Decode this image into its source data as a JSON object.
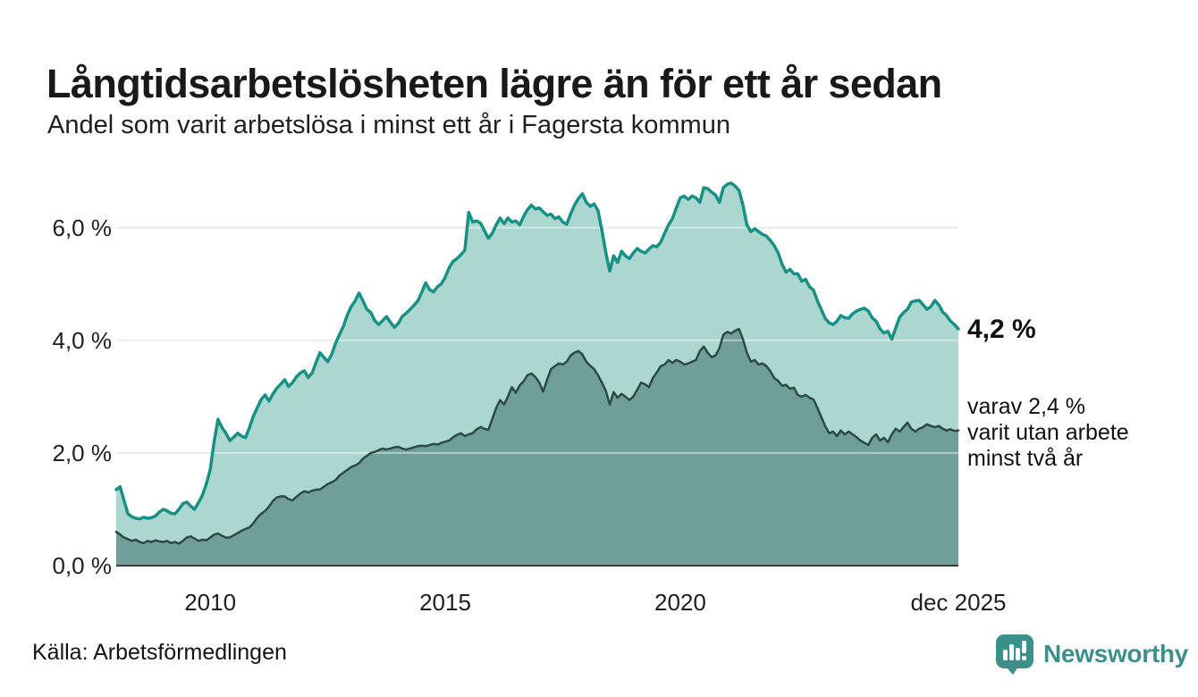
{
  "header": {
    "title": "Långtidsarbetslösheten lägre än för ett år sedan",
    "subtitle": "Andel som varit arbetslösa i minst ett år i Fagersta kommun"
  },
  "chart_data": {
    "type": "area",
    "title": "Långtidsarbetslösheten lägre än för ett år sedan",
    "subtitle": "Andel som varit arbetslösa i minst ett år i Fagersta kommun",
    "grid": true,
    "legend_position": "none",
    "x_axis": {
      "range": [
        2008.0,
        2025.917
      ],
      "ticks": [
        {
          "label": "2010",
          "value": 2010
        },
        {
          "label": "2015",
          "value": 2015
        },
        {
          "label": "2020",
          "value": 2020
        },
        {
          "label": "dec 2025",
          "value": 2025.917
        }
      ]
    },
    "y_axis": {
      "range": [
        0,
        6.9
      ],
      "unit": "%",
      "gridlines": [
        2,
        4,
        6
      ],
      "ticks": [
        {
          "label": "0,0 %",
          "value": 0
        },
        {
          "label": "2,0 %",
          "value": 2
        },
        {
          "label": "4,0 %",
          "value": 4
        },
        {
          "label": "6,0 %",
          "value": 6
        }
      ]
    },
    "series": [
      {
        "name": "Arbetslösa minst ett år",
        "line_color": "#189184",
        "fill_color": "#acd7d0",
        "end_value_label": "4,2 %",
        "start": 2008.0,
        "step_months": 1,
        "values": [
          1.35,
          1.4,
          1.15,
          0.92,
          0.87,
          0.84,
          0.83,
          0.86,
          0.84,
          0.85,
          0.88,
          0.95,
          1.0,
          0.97,
          0.93,
          0.92,
          1.0,
          1.1,
          1.13,
          1.06,
          1.0,
          1.12,
          1.25,
          1.45,
          1.71,
          2.2,
          2.6,
          2.45,
          2.35,
          2.22,
          2.28,
          2.35,
          2.3,
          2.27,
          2.45,
          2.65,
          2.8,
          2.95,
          3.03,
          2.92,
          3.05,
          3.15,
          3.22,
          3.3,
          3.18,
          3.25,
          3.35,
          3.42,
          3.46,
          3.34,
          3.42,
          3.6,
          3.78,
          3.7,
          3.62,
          3.75,
          3.95,
          4.1,
          4.25,
          4.45,
          4.6,
          4.7,
          4.84,
          4.7,
          4.55,
          4.49,
          4.35,
          4.28,
          4.35,
          4.42,
          4.32,
          4.23,
          4.3,
          4.42,
          4.48,
          4.55,
          4.62,
          4.7,
          4.85,
          5.02,
          4.9,
          4.86,
          4.95,
          5.0,
          5.12,
          5.29,
          5.4,
          5.45,
          5.52,
          5.6,
          6.27,
          6.1,
          6.12,
          6.08,
          5.95,
          5.81,
          5.9,
          6.05,
          6.17,
          6.07,
          6.17,
          6.1,
          6.12,
          6.05,
          6.2,
          6.32,
          6.4,
          6.33,
          6.35,
          6.28,
          6.22,
          6.24,
          6.16,
          6.19,
          6.1,
          6.06,
          6.24,
          6.4,
          6.52,
          6.6,
          6.45,
          6.38,
          6.42,
          6.3,
          5.95,
          5.55,
          5.23,
          5.5,
          5.38,
          5.58,
          5.5,
          5.45,
          5.55,
          5.63,
          5.58,
          5.55,
          5.62,
          5.68,
          5.66,
          5.74,
          5.9,
          6.05,
          6.16,
          6.35,
          6.53,
          6.56,
          6.5,
          6.56,
          6.53,
          6.45,
          6.71,
          6.69,
          6.63,
          6.58,
          6.45,
          6.71,
          6.77,
          6.79,
          6.74,
          6.66,
          6.4,
          6.05,
          5.93,
          5.98,
          5.93,
          5.88,
          5.85,
          5.77,
          5.68,
          5.55,
          5.35,
          5.21,
          5.26,
          5.18,
          5.18,
          5.05,
          5.08,
          4.95,
          4.89,
          4.7,
          4.55,
          4.39,
          4.31,
          4.28,
          4.34,
          4.44,
          4.4,
          4.39,
          4.47,
          4.52,
          4.55,
          4.57,
          4.52,
          4.4,
          4.34,
          4.2,
          4.13,
          4.16,
          4.02,
          4.22,
          4.41,
          4.49,
          4.55,
          4.68,
          4.7,
          4.71,
          4.63,
          4.55,
          4.6,
          4.71,
          4.63,
          4.5,
          4.44,
          4.34,
          4.28,
          4.2
        ]
      },
      {
        "name": "Varav utan arbete minst två år",
        "line_color": "#2c4944",
        "fill_color": "#6f9f99",
        "end_value_label": "2,4 %",
        "start": 2008.0,
        "step_months": 1,
        "values": [
          0.6,
          0.55,
          0.5,
          0.47,
          0.44,
          0.46,
          0.42,
          0.4,
          0.44,
          0.42,
          0.45,
          0.43,
          0.42,
          0.44,
          0.4,
          0.42,
          0.39,
          0.44,
          0.5,
          0.52,
          0.48,
          0.44,
          0.46,
          0.45,
          0.5,
          0.55,
          0.57,
          0.53,
          0.5,
          0.5,
          0.54,
          0.58,
          0.62,
          0.65,
          0.68,
          0.75,
          0.85,
          0.92,
          0.97,
          1.05,
          1.15,
          1.21,
          1.23,
          1.23,
          1.18,
          1.16,
          1.22,
          1.28,
          1.32,
          1.3,
          1.33,
          1.35,
          1.35,
          1.4,
          1.45,
          1.48,
          1.52,
          1.6,
          1.65,
          1.7,
          1.75,
          1.78,
          1.82,
          1.9,
          1.95,
          2.0,
          2.02,
          2.05,
          2.08,
          2.06,
          2.08,
          2.1,
          2.11,
          2.08,
          2.06,
          2.08,
          2.1,
          2.12,
          2.13,
          2.12,
          2.14,
          2.16,
          2.15,
          2.18,
          2.2,
          2.22,
          2.28,
          2.32,
          2.35,
          2.3,
          2.33,
          2.35,
          2.42,
          2.46,
          2.43,
          2.41,
          2.6,
          2.8,
          2.94,
          2.86,
          3.0,
          3.17,
          3.07,
          3.2,
          3.27,
          3.38,
          3.41,
          3.35,
          3.25,
          3.09,
          3.3,
          3.49,
          3.54,
          3.59,
          3.57,
          3.62,
          3.73,
          3.78,
          3.81,
          3.75,
          3.62,
          3.55,
          3.49,
          3.38,
          3.25,
          3.1,
          2.86,
          3.08,
          2.98,
          3.05,
          3.0,
          2.94,
          3.0,
          3.12,
          3.25,
          3.22,
          3.17,
          3.33,
          3.43,
          3.54,
          3.57,
          3.65,
          3.6,
          3.65,
          3.62,
          3.57,
          3.59,
          3.62,
          3.65,
          3.81,
          3.89,
          3.78,
          3.7,
          3.73,
          3.86,
          4.1,
          4.15,
          4.12,
          4.17,
          4.2,
          4.02,
          3.78,
          3.62,
          3.65,
          3.57,
          3.59,
          3.54,
          3.45,
          3.33,
          3.28,
          3.19,
          3.21,
          3.14,
          3.16,
          3.03,
          3.0,
          3.03,
          2.98,
          2.95,
          2.8,
          2.64,
          2.48,
          2.35,
          2.38,
          2.3,
          2.4,
          2.33,
          2.38,
          2.33,
          2.28,
          2.22,
          2.18,
          2.14,
          2.27,
          2.33,
          2.22,
          2.27,
          2.19,
          2.33,
          2.43,
          2.38,
          2.46,
          2.54,
          2.43,
          2.38,
          2.43,
          2.46,
          2.51,
          2.48,
          2.46,
          2.48,
          2.43,
          2.4,
          2.42,
          2.39,
          2.4
        ]
      }
    ]
  },
  "annotations": {
    "value_label": "4,2 %",
    "note_line1": "varav 2,4 %",
    "note_line2": "varit utan arbete",
    "note_line3": "minst två år"
  },
  "footer": {
    "source": "Källa: Arbetsförmedlingen",
    "logo_text": "Newsworthy"
  },
  "colors": {
    "line_1yr": "#189184",
    "fill_1yr": "#acd7d0",
    "line_2yr": "#2c4944",
    "fill_2yr": "#6f9f99",
    "grid": "#dedede",
    "axis": "#3c3c3c",
    "brand": "#3d908a",
    "text": "#191919"
  }
}
